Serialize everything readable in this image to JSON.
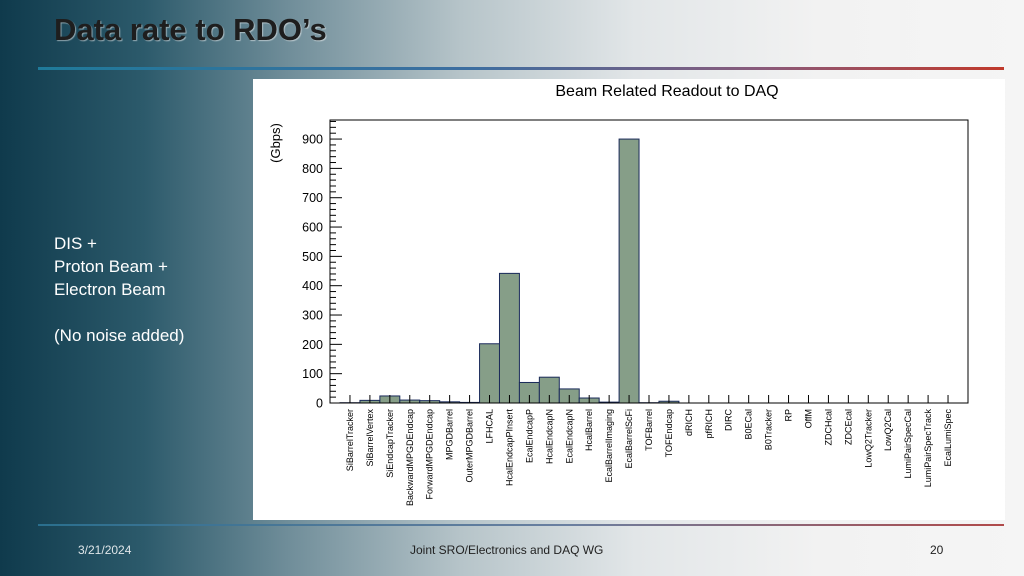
{
  "slide": {
    "title": "Data rate to RDO’s",
    "side_lines": [
      "DIS +",
      "Proton Beam +",
      "Electron Beam"
    ],
    "side_note": "(No noise added)"
  },
  "footer": {
    "date": "3/21/2024",
    "center": "Joint SRO/Electronics and DAQ WG",
    "page": "20"
  },
  "colors": {
    "bar_fill": "#869e88",
    "bar_stroke": "#1a2a5a",
    "title_rule_start": "#1f7a9a",
    "title_rule_end": "#c0392b"
  },
  "chart_data": {
    "type": "bar",
    "title": "Beam Related Readout to DAQ",
    "ylabel": "(Gbps)",
    "xlabel": "",
    "ylim": [
      0,
      965
    ],
    "yticks": [
      0,
      100,
      200,
      300,
      400,
      500,
      600,
      700,
      800,
      900
    ],
    "grid": false,
    "categories": [
      "SiBarrelTracker",
      "SiBarrelVertex",
      "SiEndcapTracker",
      "BackwardMPGDEndcap",
      "ForwardMPGDEndcap",
      "MPGDBarrel",
      "OuterMPGDBarrel",
      "LFHCAL",
      "HcalEndcapPInsert",
      "EcalEndcapP",
      "HcalEndcapN",
      "EcalEndcapN",
      "HcalBarrel",
      "EcalBarrelImaging",
      "EcalBarrelScFi",
      "TOFBarrel",
      "TOFEndcap",
      "dRICH",
      "pfRICH",
      "DIRC",
      "B0ECal",
      "B0Tracker",
      "RP",
      "OffM",
      "ZDCHcal",
      "ZDCEcal",
      "LowQ2Tracker",
      "LowQ2Cal",
      "LumiPairSpecCal",
      "LumiPairSpecTrack",
      "EcalLumiSpec"
    ],
    "values": [
      1,
      9,
      24,
      10,
      8,
      4,
      2,
      202,
      442,
      70,
      88,
      48,
      17,
      3,
      900,
      1,
      6,
      0,
      0,
      0,
      0,
      0,
      0,
      0,
      0,
      0,
      0,
      0,
      0,
      0,
      0
    ]
  }
}
